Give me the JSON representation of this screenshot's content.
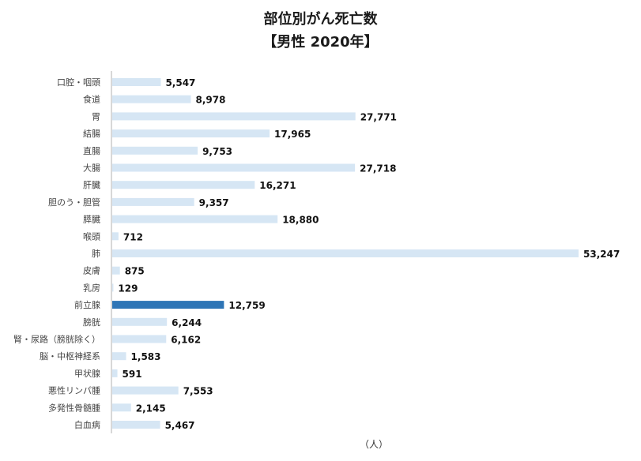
{
  "title_line1": "部位別がん死亡数",
  "title_line2": "【男性 2020年】",
  "unit_label": "（人）",
  "colors": {
    "bar": "#d6e6f4",
    "highlight": "#2e75b6",
    "axis": "#b0b0b0",
    "label": "#444444",
    "value": "#111111"
  },
  "chart_data": {
    "type": "bar",
    "orientation": "horizontal",
    "categories": [
      "口腔・咽頭",
      "食道",
      "胃",
      "結腸",
      "直腸",
      "大腸",
      "肝臓",
      "胆のう・胆管",
      "膵臓",
      "喉頭",
      "肺",
      "皮膚",
      "乳房",
      "前立腺",
      "膀胱",
      "腎・尿路（膀胱除く）",
      "脳・中枢神経系",
      "甲状腺",
      "悪性リンパ腫",
      "多発性骨髄腫",
      "白血病"
    ],
    "values": [
      5547,
      8978,
      27771,
      17965,
      9753,
      27718,
      16271,
      9357,
      18880,
      712,
      53247,
      875,
      129,
      12759,
      6244,
      6162,
      1583,
      591,
      7553,
      2145,
      5467
    ],
    "value_labels": [
      "5,547",
      "8,978",
      "27,771",
      "17,965",
      "9,753",
      "27,718",
      "16,271",
      "9,357",
      "18,880",
      "712",
      "53,247",
      "875",
      "129",
      "12,759",
      "6,244",
      "6,162",
      "1,583",
      "591",
      "7,553",
      "2,145",
      "5,467"
    ],
    "highlight": "前立腺",
    "xlim": [
      0,
      53247
    ],
    "xlabel": "（人）",
    "grid": false,
    "legend": "none"
  }
}
